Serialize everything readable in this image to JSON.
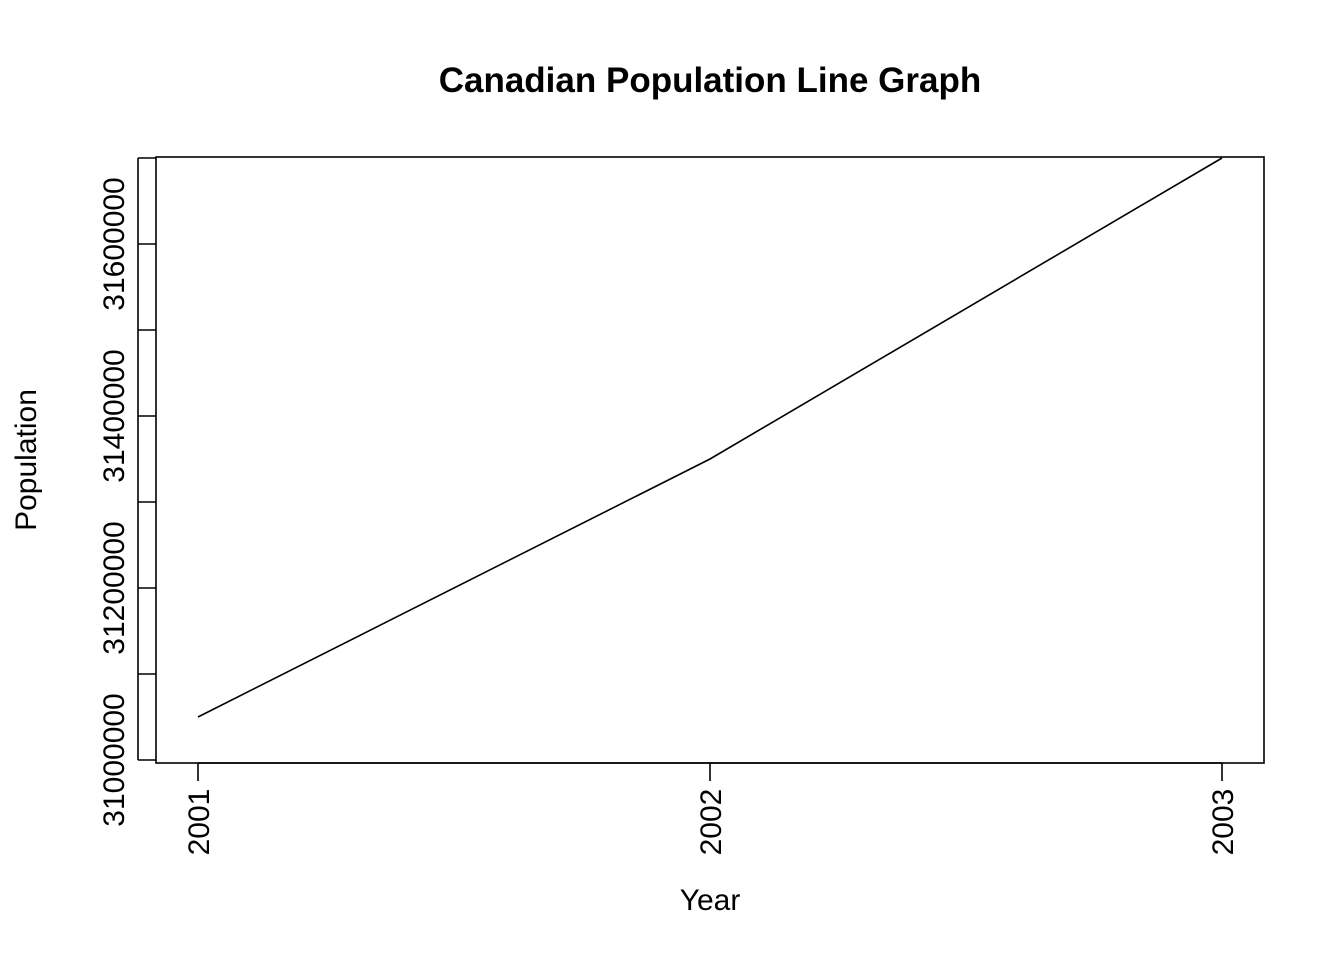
{
  "chart_data": {
    "type": "line",
    "title": "Canadian Population Line Graph",
    "xlabel": "Year",
    "ylabel": "Population",
    "x": [
      2001,
      2002,
      2003
    ],
    "series": [
      {
        "values": [
          31050000,
          31350000,
          31700000
        ]
      }
    ],
    "xticks": [
      "2001",
      "2002",
      "2003"
    ],
    "yticks": [
      31000000,
      31100000,
      31200000,
      31300000,
      31400000,
      31500000,
      31600000,
      31700000
    ],
    "ytick_labels": [
      "31000000",
      "31200000",
      "31400000",
      "31600000"
    ],
    "xlim": [
      2001,
      2003
    ],
    "ylim": [
      31000000,
      31700000
    ],
    "grid": false,
    "line_color": "#000000"
  }
}
